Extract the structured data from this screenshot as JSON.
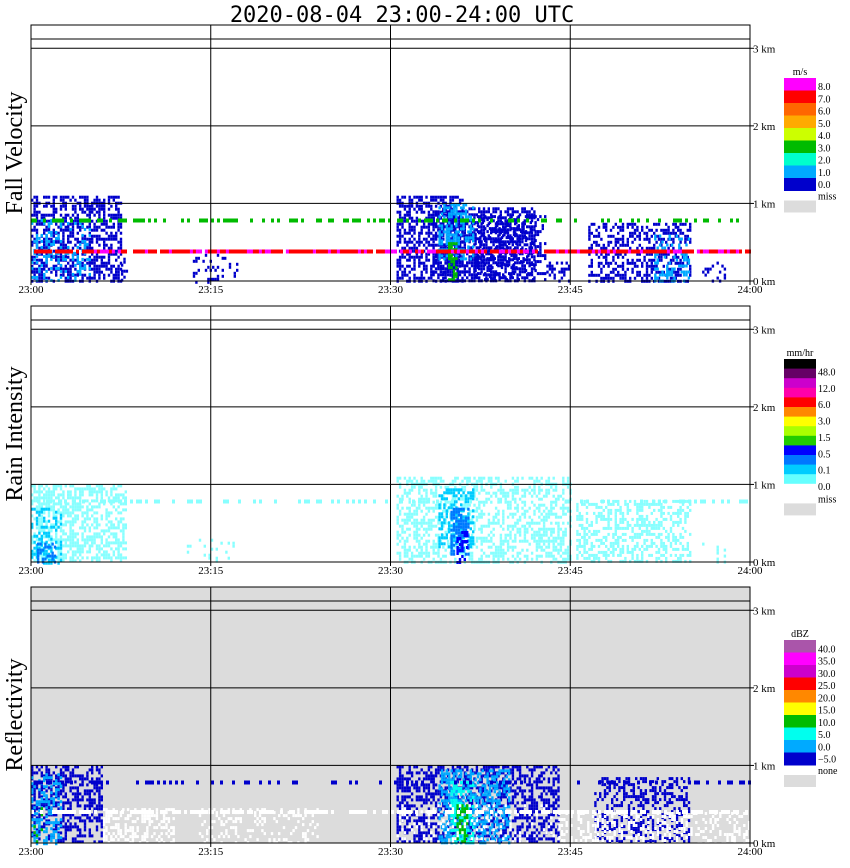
{
  "title": "2020-08-04   23:00-24:00 UTC",
  "colors": {
    "miss": "#dcdcdc",
    "grid": "#000000"
  },
  "chart_data": [
    {
      "type": "heatmap",
      "ylabel": "Fall Velocity",
      "xlim_minutes": [
        0,
        60
      ],
      "ylim_km": [
        0,
        3.3
      ],
      "xticks": [
        "23:00",
        "23:15",
        "23:30",
        "23:45",
        "24:00"
      ],
      "xtick_minutes": [
        0,
        15,
        30,
        45,
        60
      ],
      "yticks": [
        "0 km",
        "1 km",
        "2 km",
        "3 km"
      ],
      "ytick_values": [
        0,
        1,
        2,
        3
      ],
      "background": "#ffffff",
      "colorbar": {
        "unit": "m/s",
        "labels": [
          "8.0",
          "7.0",
          "6.0",
          "5.0",
          "4.0",
          "3.0",
          "2.0",
          "1.0",
          "0.0"
        ],
        "colors": [
          "#ff00ff",
          "#ff0000",
          "#ff6600",
          "#ffaa00",
          "#ccff00",
          "#00bb00",
          "#00ffcc",
          "#00aaff",
          "#0000cc"
        ],
        "extra": "miss"
      },
      "regions": [
        {
          "t": [
            0,
            7.5
          ],
          "h": [
            0,
            1.1
          ],
          "c": "#0000cc",
          "d": 0.55
        },
        {
          "t": [
            0,
            5
          ],
          "h": [
            0,
            0.8
          ],
          "c": "#00aaff",
          "d": 0.25
        },
        {
          "t": [
            7.5,
            8
          ],
          "h": [
            0,
            0.3
          ],
          "c": "#0000cc",
          "d": 0.35
        },
        {
          "t": [
            13.5,
            17.5
          ],
          "h": [
            0,
            0.35
          ],
          "c": "#0000cc",
          "d": 0.18
        },
        {
          "t": [
            30.5,
            36
          ],
          "h": [
            0,
            1.1
          ],
          "c": "#0000cc",
          "d": 0.55
        },
        {
          "t": [
            33.5,
            42
          ],
          "h": [
            0,
            0.95
          ],
          "c": "#0000cc",
          "d": 0.6
        },
        {
          "t": [
            34,
            37
          ],
          "h": [
            0.3,
            1.0
          ],
          "c": "#00aaff",
          "d": 0.5
        },
        {
          "t": [
            34.8,
            35.6
          ],
          "h": [
            0,
            0.5
          ],
          "c": "#00bb00",
          "d": 0.7
        },
        {
          "t": [
            37,
            43
          ],
          "h": [
            0,
            0.85
          ],
          "c": "#0000cc",
          "d": 0.35
        },
        {
          "t": [
            43,
            45
          ],
          "h": [
            0,
            0.25
          ],
          "c": "#0000cc",
          "d": 0.35
        },
        {
          "t": [
            46.5,
            55
          ],
          "h": [
            0,
            0.75
          ],
          "c": "#0000cc",
          "d": 0.45
        },
        {
          "t": [
            52,
            55
          ],
          "h": [
            0,
            0.6
          ],
          "c": "#00aaff",
          "d": 0.35
        },
        {
          "t": [
            56,
            58
          ],
          "h": [
            0,
            0.25
          ],
          "c": "#0000cc",
          "d": 0.15
        }
      ],
      "lines": [
        {
          "t": [
            0,
            60
          ],
          "h": 0.78,
          "c": "#00bb00",
          "d": 0.4
        },
        {
          "t": [
            0,
            60
          ],
          "h": 0.38,
          "c": "#ff0000",
          "d": 0.9
        },
        {
          "t": [
            5,
            60
          ],
          "h": 0.38,
          "c": "#ff00ff",
          "d": 0.25
        }
      ]
    },
    {
      "type": "heatmap",
      "ylabel": "Rain Intensity",
      "xlim_minutes": [
        0,
        60
      ],
      "ylim_km": [
        0,
        3.3
      ],
      "xticks": [
        "23:00",
        "23:15",
        "23:30",
        "23:45",
        "24:00"
      ],
      "xtick_minutes": [
        0,
        15,
        30,
        45,
        60
      ],
      "yticks": [
        "0 km",
        "1 km",
        "2 km",
        "3 km"
      ],
      "ytick_values": [
        0,
        1,
        2,
        3
      ],
      "background": "#ffffff",
      "colorbar": {
        "unit": "mm/hr",
        "labels": [
          "48.0",
          "12.0",
          "6.0",
          "3.0",
          "1.5",
          "0.5",
          "0.1",
          "0.0"
        ],
        "colors": [
          "#000000",
          "#660066",
          "#cc00cc",
          "#ff00aa",
          "#ff0000",
          "#ff8800",
          "#ffff00",
          "#aaff00",
          "#22cc00",
          "#0000ff",
          "#0077ff",
          "#00ccff",
          "#66ffff",
          "#ffffff"
        ],
        "extra": "miss"
      },
      "regions": [
        {
          "t": [
            0,
            8
          ],
          "h": [
            0,
            1.0
          ],
          "c": "#88ffff",
          "d": 0.55
        },
        {
          "t": [
            0,
            2.5
          ],
          "h": [
            0,
            0.7
          ],
          "c": "#00ccff",
          "d": 0.35
        },
        {
          "t": [
            0.5,
            2
          ],
          "h": [
            0,
            0.25
          ],
          "c": "#0077ff",
          "d": 0.5
        },
        {
          "t": [
            13,
            17
          ],
          "h": [
            0,
            0.3
          ],
          "c": "#88ffff",
          "d": 0.15
        },
        {
          "t": [
            30.5,
            45
          ],
          "h": [
            0,
            1.1
          ],
          "c": "#88ffff",
          "d": 0.45
        },
        {
          "t": [
            34,
            37
          ],
          "h": [
            0.2,
            0.95
          ],
          "c": "#00ccff",
          "d": 0.5
        },
        {
          "t": [
            35,
            36.5
          ],
          "h": [
            0.1,
            0.7
          ],
          "c": "#0077ff",
          "d": 0.6
        },
        {
          "t": [
            35.5,
            36.5
          ],
          "h": [
            0,
            0.4
          ],
          "c": "#0000ff",
          "d": 0.4
        },
        {
          "t": [
            45.5,
            55
          ],
          "h": [
            0,
            0.8
          ],
          "c": "#88ffff",
          "d": 0.45
        },
        {
          "t": [
            56,
            58
          ],
          "h": [
            0,
            0.25
          ],
          "c": "#88ffff",
          "d": 0.15
        }
      ],
      "lines": [
        {
          "t": [
            0,
            60
          ],
          "h": 0.78,
          "c": "#88ffff",
          "d": 0.3
        }
      ]
    },
    {
      "type": "heatmap",
      "ylabel": "Reflectivity",
      "xlim_minutes": [
        0,
        60
      ],
      "ylim_km": [
        0,
        3.3
      ],
      "xticks": [
        "23:00",
        "23:15",
        "23:30",
        "23:45",
        "24:00"
      ],
      "xtick_minutes": [
        0,
        15,
        30,
        45,
        60
      ],
      "yticks": [
        "0 km",
        "1 km",
        "2 km",
        "3 km"
      ],
      "ytick_values": [
        0,
        1,
        2,
        3
      ],
      "background": "#dcdcdc",
      "colorbar": {
        "unit": "dBZ",
        "labels": [
          "40.0",
          "35.0",
          "30.0",
          "25.0",
          "20.0",
          "15.0",
          "10.0",
          "5.0",
          "0.0",
          "−5.0"
        ],
        "colors": [
          "#aa55aa",
          "#ff00ff",
          "#cc00cc",
          "#ff0000",
          "#ff8800",
          "#ffff00",
          "#00bb00",
          "#00ffee",
          "#00aaff",
          "#0000cc"
        ],
        "extra": "none"
      },
      "regions": [
        {
          "t": [
            0,
            6
          ],
          "h": [
            0,
            1.0
          ],
          "c": "#0000cc",
          "d": 0.5
        },
        {
          "t": [
            0,
            2.5
          ],
          "h": [
            0,
            0.9
          ],
          "c": "#00aaff",
          "d": 0.4
        },
        {
          "t": [
            0.2,
            1
          ],
          "h": [
            0,
            0.5
          ],
          "c": "#00bb00",
          "d": 0.25
        },
        {
          "t": [
            6,
            12
          ],
          "h": [
            0,
            0.45
          ],
          "c": "#ffffff",
          "d": 0.45
        },
        {
          "t": [
            14,
            24
          ],
          "h": [
            0,
            0.45
          ],
          "c": "#ffffff",
          "d": 0.2
        },
        {
          "t": [
            30.5,
            44
          ],
          "h": [
            0,
            1.0
          ],
          "c": "#0000cc",
          "d": 0.5
        },
        {
          "t": [
            34,
            40
          ],
          "h": [
            0,
            0.95
          ],
          "c": "#00aaff",
          "d": 0.5
        },
        {
          "t": [
            35,
            37
          ],
          "h": [
            0,
            0.8
          ],
          "c": "#00ffee",
          "d": 0.5
        },
        {
          "t": [
            35.5,
            36.5
          ],
          "h": [
            0,
            0.5
          ],
          "c": "#00bb00",
          "d": 0.6
        },
        {
          "t": [
            30.5,
            44
          ],
          "h": [
            0,
            0.5
          ],
          "c": "#ffffff",
          "d": 0.15
        },
        {
          "t": [
            47,
            55
          ],
          "h": [
            0,
            0.85
          ],
          "c": "#0000cc",
          "d": 0.45
        },
        {
          "t": [
            44,
            60
          ],
          "h": [
            0,
            0.4
          ],
          "c": "#ffffff",
          "d": 0.3
        }
      ],
      "lines": [
        {
          "t": [
            0,
            60
          ],
          "h": 0.78,
          "c": "#0000cc",
          "d": 0.3
        },
        {
          "t": [
            0,
            60
          ],
          "h": 0.4,
          "c": "#ffffff",
          "d": 0.6
        }
      ]
    }
  ]
}
